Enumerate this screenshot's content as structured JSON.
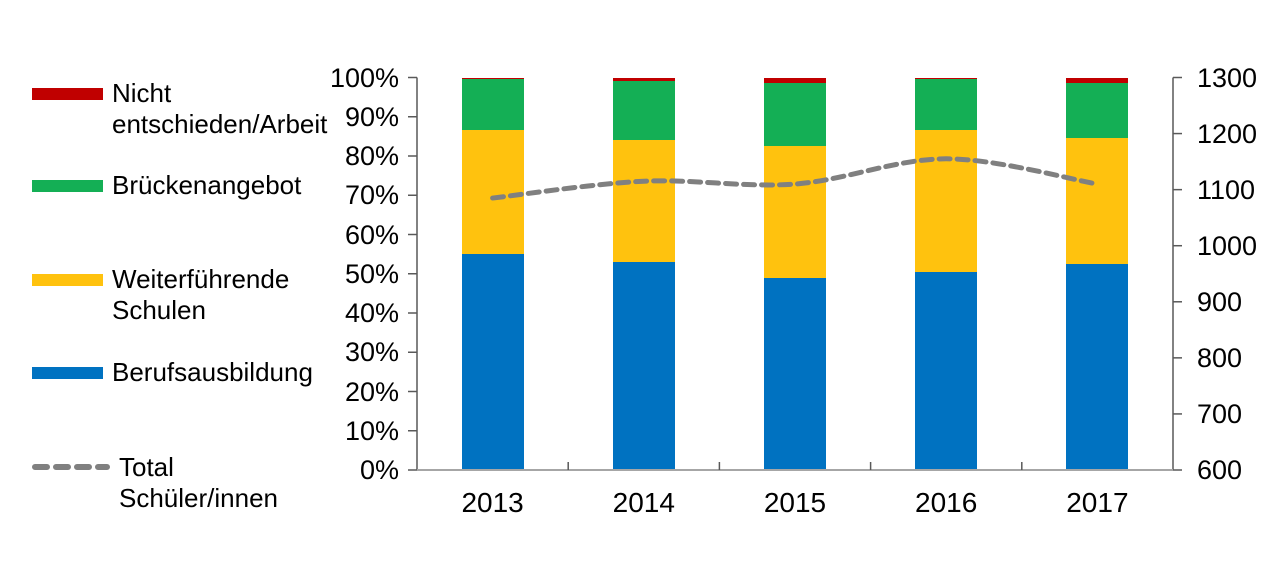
{
  "legend": {
    "items": [
      {
        "label": "Nicht entschieden/Arbeit",
        "label_lines": [
          "Nicht",
          "entschieden/Arbeit"
        ],
        "swatch": "box",
        "color": "#C00000"
      },
      {
        "label": "Brückenangebot",
        "label_lines": [
          "Brückenangebot"
        ],
        "swatch": "box",
        "color": "#14AF55"
      },
      {
        "label": "Weiterführende Schulen",
        "label_lines": [
          "Weiterführende",
          "Schulen"
        ],
        "swatch": "box",
        "color": "#FFC20E"
      },
      {
        "label": "Berufsausbildung",
        "label_lines": [
          "Berufsausbildung"
        ],
        "swatch": "box",
        "color": "#0072C1"
      },
      {
        "label": "Total Schüler/innen",
        "label_lines": [
          "Total",
          "Schüler/innen"
        ],
        "swatch": "dashed-line",
        "color": "#808080"
      }
    ]
  },
  "chart_data": {
    "type": "bar",
    "subtype": "stacked-percent-with-line",
    "title": "",
    "categories": [
      "2013",
      "2014",
      "2015",
      "2016",
      "2017"
    ],
    "series": [
      {
        "name": "Berufsausbildung",
        "color": "#0072C1",
        "axis": "left",
        "unit": "%",
        "values": [
          55,
          53,
          49,
          50.5,
          52.5
        ]
      },
      {
        "name": "Weiterführende Schulen",
        "color": "#FFC20E",
        "axis": "left",
        "unit": "%",
        "values": [
          31.5,
          31,
          33.5,
          36,
          32
        ]
      },
      {
        "name": "Brückenangebot",
        "color": "#14AF55",
        "axis": "left",
        "unit": "%",
        "values": [
          13,
          15,
          16,
          13,
          14
        ]
      },
      {
        "name": "Nicht entschieden/Arbeit",
        "color": "#C00000",
        "axis": "left",
        "unit": "%",
        "values": [
          0.5,
          1,
          1.5,
          0.5,
          1.5
        ]
      }
    ],
    "line_series": {
      "name": "Total Schüler/innen",
      "color": "#808080",
      "style": "dashed",
      "axis": "right",
      "values": [
        1085,
        1115,
        1110,
        1155,
        1110
      ]
    },
    "left_axis": {
      "min": 0,
      "max": 100,
      "unit": "%",
      "ticks": [
        "0%",
        "10%",
        "20%",
        "30%",
        "40%",
        "50%",
        "60%",
        "70%",
        "80%",
        "90%",
        "100%"
      ]
    },
    "right_axis": {
      "min": 600,
      "max": 1300,
      "ticks": [
        "600",
        "700",
        "800",
        "900",
        "1000",
        "1100",
        "1200",
        "1300"
      ]
    },
    "grid": false,
    "legend_position": "left",
    "colors": {
      "axis_line": "#595959",
      "baseline": "#A6A6A6",
      "text": "#000000",
      "line": "#808080"
    }
  }
}
